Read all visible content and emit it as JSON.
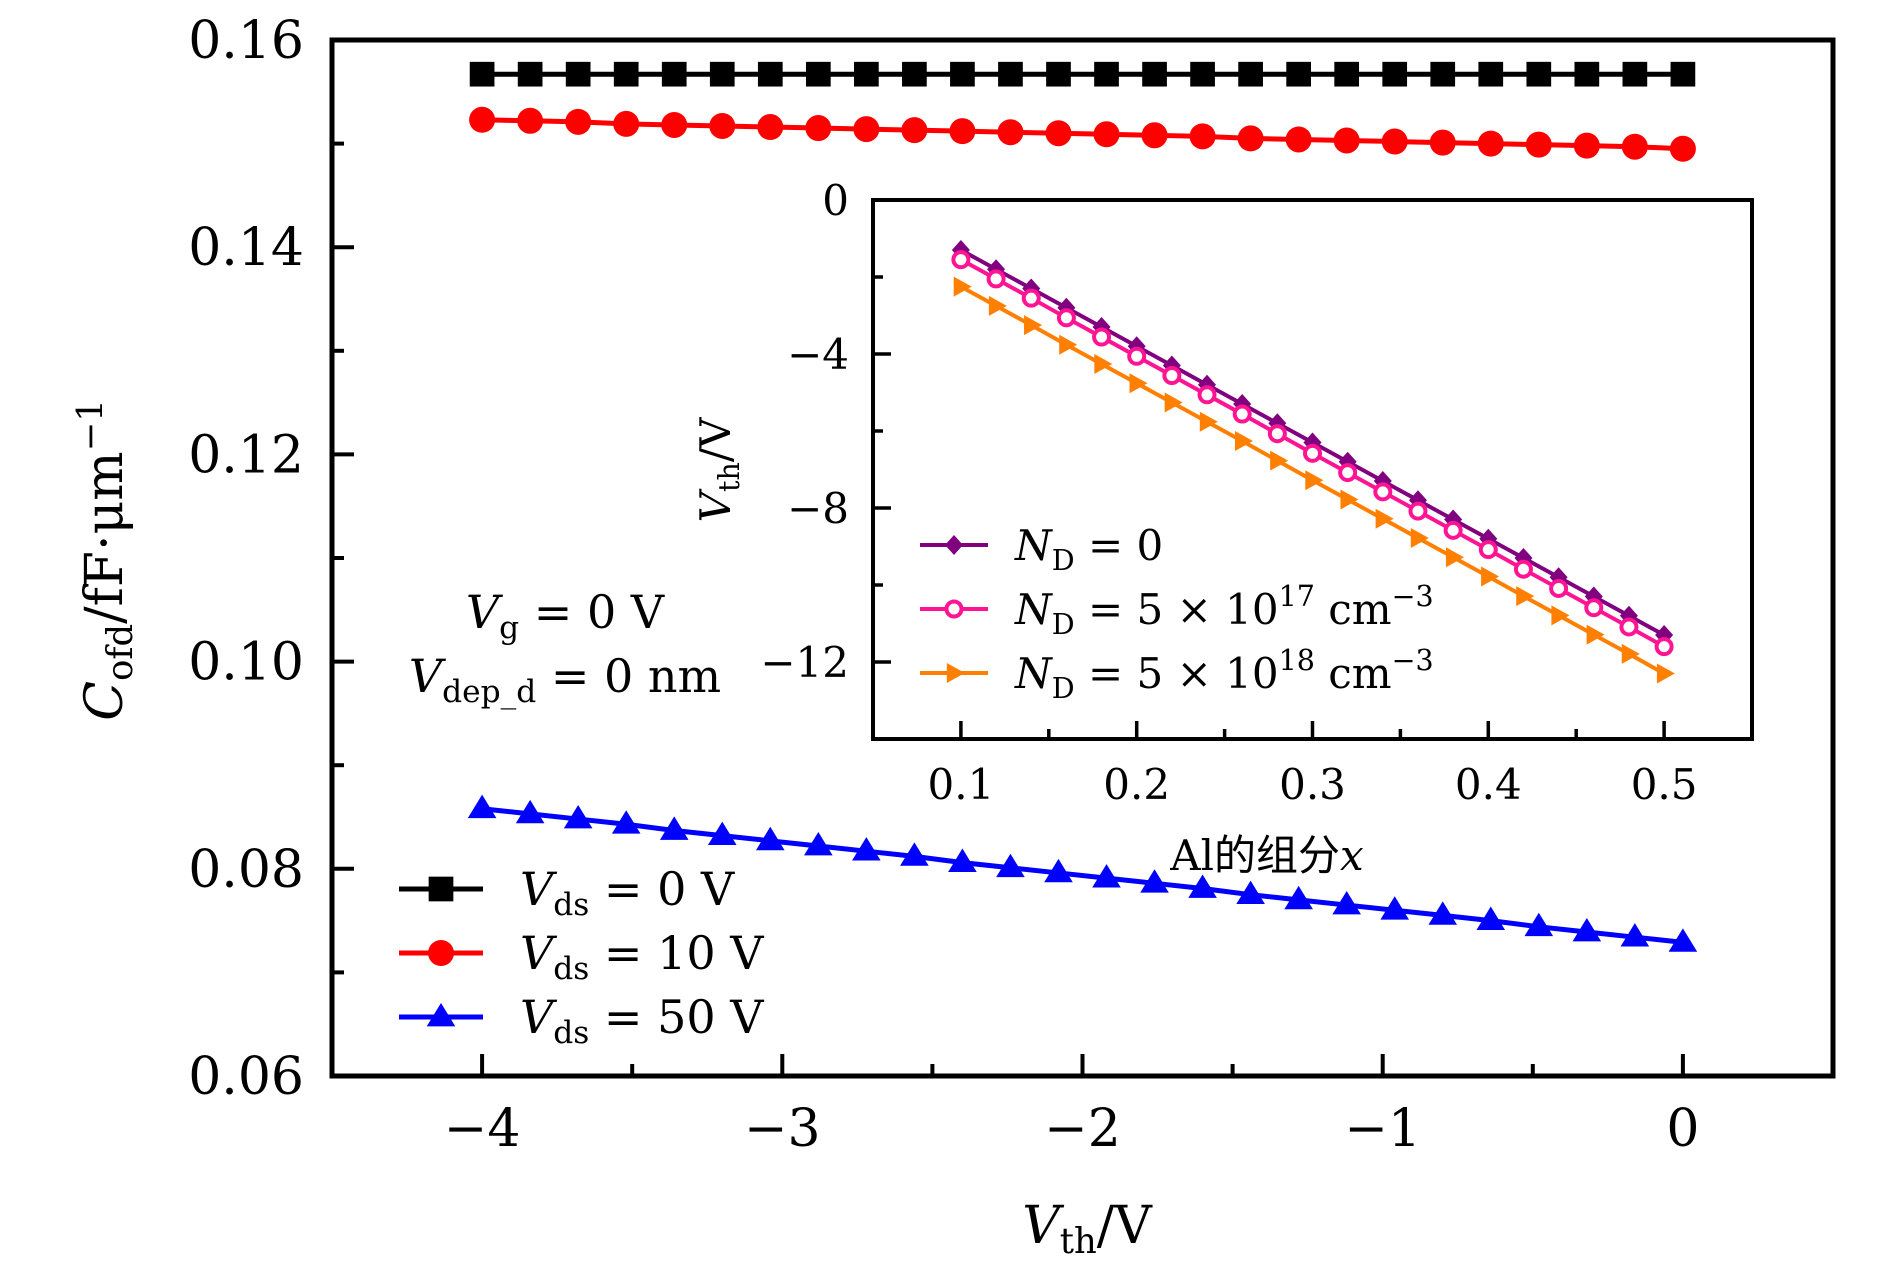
{
  "chart_data": [
    {
      "id": "main",
      "type": "line",
      "title": "",
      "xlabel": {
        "main": "V",
        "sub": "th",
        "unit": "/V"
      },
      "ylabel": {
        "main": "C",
        "sub": "ofd",
        "unit": "/fF·μm",
        "sup": "−1"
      },
      "xlim": [
        -4.5,
        0.5
      ],
      "ylim": [
        0.06,
        0.16
      ],
      "xticks": [
        -4,
        -3,
        -2,
        -1,
        0
      ],
      "xtick_labels": [
        "−4",
        "−3",
        "−2",
        "−1",
        "0"
      ],
      "xminor": [
        -3.5,
        -2.5,
        -1.5,
        -0.5
      ],
      "yticks": [
        0.06,
        0.08,
        0.1,
        0.12,
        0.14,
        0.16
      ],
      "ytick_labels": [
        "0.06",
        "0.08",
        "0.10",
        "0.12",
        "0.14",
        "0.16"
      ],
      "yminor": [
        0.07,
        0.09,
        0.11,
        0.13,
        0.15
      ],
      "grid": false,
      "legend_position": "bottom-left",
      "x": [
        -4.0,
        -3.84,
        -3.68,
        -3.52,
        -3.36,
        -3.2,
        -3.04,
        -2.88,
        -2.72,
        -2.56,
        -2.4,
        -2.24,
        -2.08,
        -1.92,
        -1.76,
        -1.6,
        -1.44,
        -1.28,
        -1.12,
        -0.96,
        -0.8,
        -0.64,
        -0.48,
        -0.32,
        -0.16,
        0.0
      ],
      "series": [
        {
          "name": "Vds = 0 V",
          "label_main": "V",
          "label_sub": "ds",
          "label_rest": " = 0 V",
          "color": "#000000",
          "marker": "square",
          "values": [
            0.1567,
            0.1567,
            0.1567,
            0.1567,
            0.1567,
            0.1567,
            0.1567,
            0.1567,
            0.1567,
            0.1567,
            0.1567,
            0.1567,
            0.1567,
            0.1567,
            0.1567,
            0.1567,
            0.1567,
            0.1567,
            0.1567,
            0.1567,
            0.1567,
            0.1567,
            0.1567,
            0.1567,
            0.1567,
            0.1567
          ]
        },
        {
          "name": "Vds = 10 V",
          "label_main": "V",
          "label_sub": "ds",
          "label_rest": " = 10 V",
          "color": "#FF0000",
          "marker": "circle",
          "values": [
            0.1523,
            0.1522,
            0.1521,
            0.1519,
            0.1518,
            0.1517,
            0.1516,
            0.1515,
            0.1514,
            0.1513,
            0.1512,
            0.1511,
            0.151,
            0.1509,
            0.1508,
            0.1507,
            0.1505,
            0.1504,
            0.1503,
            0.1502,
            0.1501,
            0.15,
            0.1499,
            0.1498,
            0.1497,
            0.1495
          ]
        },
        {
          "name": "Vds = 50 V",
          "label_main": "V",
          "label_sub": "ds",
          "label_rest": " = 50 V",
          "color": "#0000FF",
          "marker": "triangle-up",
          "values": [
            0.0858,
            0.0853,
            0.0848,
            0.0843,
            0.0837,
            0.0832,
            0.0827,
            0.0822,
            0.0817,
            0.0812,
            0.0806,
            0.0801,
            0.0796,
            0.0791,
            0.0786,
            0.0781,
            0.0775,
            0.077,
            0.0765,
            0.076,
            0.0755,
            0.075,
            0.0744,
            0.0739,
            0.0734,
            0.0729
          ]
        }
      ],
      "annotations": [
        {
          "main": "V",
          "sub": "g",
          "rest": " = 0 V"
        },
        {
          "main": "V",
          "sub": "dep_d",
          "rest": " = 0 nm"
        }
      ]
    },
    {
      "id": "inset",
      "type": "line",
      "title": "",
      "xlabel": {
        "text": "Al的组分",
        "var": "x"
      },
      "ylabel": {
        "main": "V",
        "sub": "th",
        "unit": "/V"
      },
      "xlim": [
        0.05,
        0.55
      ],
      "ylim": [
        -14,
        0
      ],
      "xticks": [
        0.1,
        0.2,
        0.3,
        0.4,
        0.5
      ],
      "xtick_labels": [
        "0.1",
        "0.2",
        "0.3",
        "0.4",
        "0.5"
      ],
      "xminor": [
        0.15,
        0.25,
        0.35,
        0.45
      ],
      "yticks": [
        0,
        -4,
        -8,
        -12
      ],
      "ytick_labels": [
        "0",
        "−4",
        "−8",
        "−12"
      ],
      "yminor": [
        -2,
        -6,
        -10
      ],
      "grid": false,
      "legend_position": "bottom-left",
      "x": [
        0.1,
        0.12,
        0.14,
        0.16,
        0.18,
        0.2,
        0.22,
        0.24,
        0.26,
        0.28,
        0.3,
        0.32,
        0.34,
        0.36,
        0.38,
        0.4,
        0.42,
        0.44,
        0.46,
        0.48,
        0.5
      ],
      "series": [
        {
          "name": "ND = 0",
          "label_main": "N",
          "label_sub": "D",
          "label_rest": " = 0",
          "label_sup": "",
          "label_tail": "",
          "color": "#800080",
          "marker": "diamond",
          "values": [
            -1.3,
            -1.8,
            -2.3,
            -2.8,
            -3.3,
            -3.8,
            -4.3,
            -4.8,
            -5.3,
            -5.8,
            -6.3,
            -6.8,
            -7.3,
            -7.8,
            -8.3,
            -8.8,
            -9.3,
            -9.8,
            -10.3,
            -10.8,
            -11.3
          ]
        },
        {
          "name": "ND = 5×10^17 cm^-3",
          "label_main": "N",
          "label_sub": "D",
          "label_rest": " = 5 × 10",
          "label_sup": "17",
          "label_tail": " cm",
          "label_tail_sup": "−3",
          "color": "#FF1493",
          "marker": "open-circle",
          "values": [
            -1.55,
            -2.05,
            -2.55,
            -3.06,
            -3.56,
            -4.06,
            -4.56,
            -5.06,
            -5.56,
            -6.07,
            -6.58,
            -7.08,
            -7.58,
            -8.08,
            -8.58,
            -9.08,
            -9.59,
            -10.09,
            -10.59,
            -11.09,
            -11.6
          ]
        },
        {
          "name": "ND = 5×10^18 cm^-3",
          "label_main": "N",
          "label_sub": "D",
          "label_rest": " = 5 × 10",
          "label_sup": "18",
          "label_tail": " cm",
          "label_tail_sup": "−3",
          "color": "#FF8000",
          "marker": "triangle-right",
          "values": [
            -2.25,
            -2.75,
            -3.25,
            -3.76,
            -4.26,
            -4.76,
            -5.26,
            -5.76,
            -6.26,
            -6.77,
            -7.28,
            -7.78,
            -8.28,
            -8.78,
            -9.28,
            -9.78,
            -10.29,
            -10.79,
            -11.29,
            -11.79,
            -12.3
          ]
        }
      ]
    }
  ]
}
